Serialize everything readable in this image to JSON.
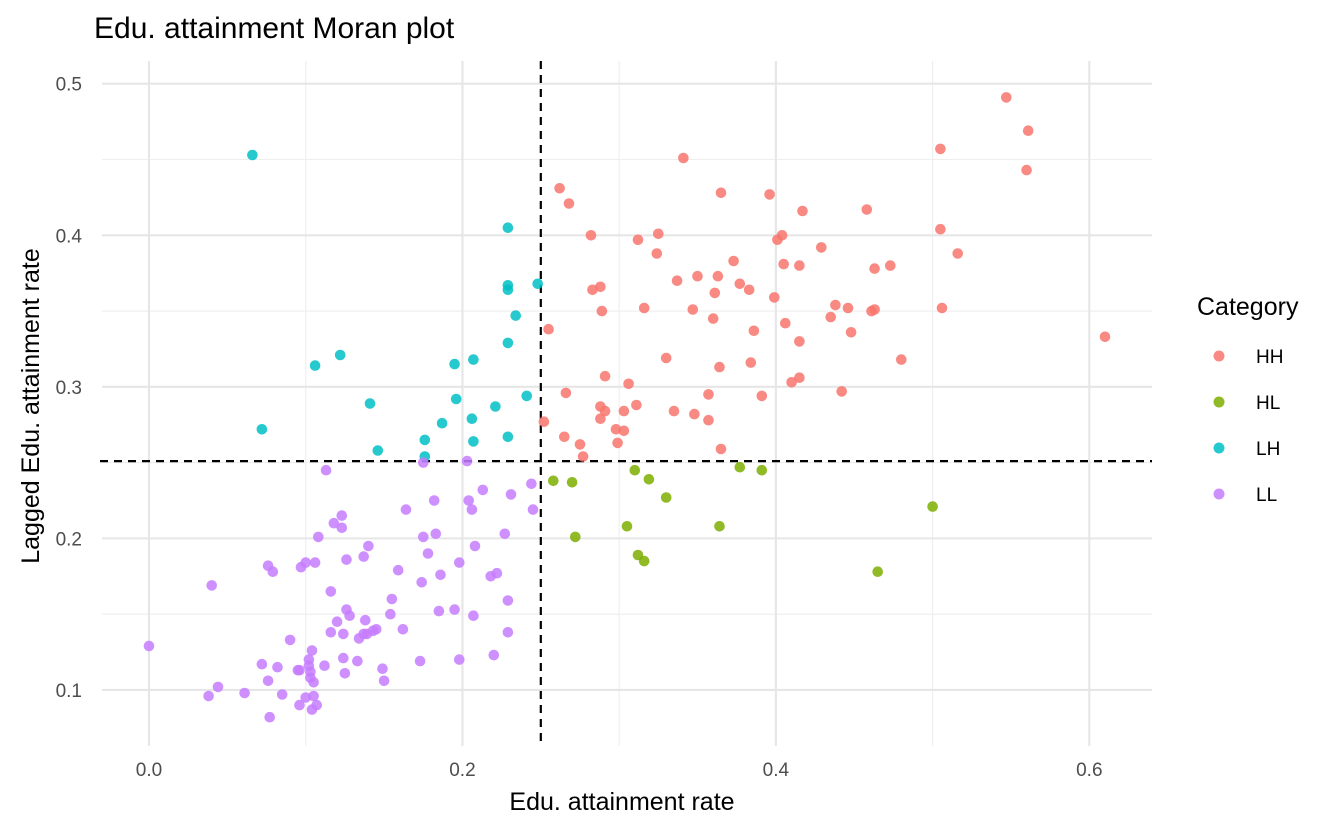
{
  "chart_data": {
    "type": "scatter",
    "title": "Edu. attainment Moran plot",
    "xlabel": "Edu. attainment rate",
    "ylabel": "Lagged Edu. attainment rate",
    "xlim": [
      -0.03,
      0.64
    ],
    "ylim": [
      0.063,
      0.515
    ],
    "x_ticks": [
      0.0,
      0.2,
      0.4,
      0.6
    ],
    "x_tick_labels": [
      "0.0",
      "0.2",
      "0.4",
      "0.6"
    ],
    "y_ticks": [
      0.1,
      0.2,
      0.3,
      0.4,
      0.5
    ],
    "y_tick_labels": [
      "0.1",
      "0.2",
      "0.3",
      "0.4",
      "0.5"
    ],
    "grid": true,
    "legend_position": "right",
    "legend_title": "Category",
    "reference_lines": {
      "x": 0.25,
      "y": 0.251
    },
    "series": [
      {
        "name": "HH",
        "color": "#F8766D",
        "points": [
          [
            0.547,
            0.491
          ],
          [
            0.561,
            0.469
          ],
          [
            0.56,
            0.443
          ],
          [
            0.505,
            0.457
          ],
          [
            0.505,
            0.404
          ],
          [
            0.506,
            0.352
          ],
          [
            0.516,
            0.388
          ],
          [
            0.61,
            0.333
          ],
          [
            0.458,
            0.417
          ],
          [
            0.463,
            0.378
          ],
          [
            0.473,
            0.38
          ],
          [
            0.461,
            0.35
          ],
          [
            0.463,
            0.351
          ],
          [
            0.48,
            0.318
          ],
          [
            0.448,
            0.336
          ],
          [
            0.446,
            0.352
          ],
          [
            0.438,
            0.354
          ],
          [
            0.435,
            0.346
          ],
          [
            0.442,
            0.297
          ],
          [
            0.429,
            0.392
          ],
          [
            0.417,
            0.416
          ],
          [
            0.415,
            0.38
          ],
          [
            0.415,
            0.33
          ],
          [
            0.415,
            0.306
          ],
          [
            0.41,
            0.303
          ],
          [
            0.406,
            0.342
          ],
          [
            0.405,
            0.381
          ],
          [
            0.404,
            0.4
          ],
          [
            0.401,
            0.397
          ],
          [
            0.399,
            0.359
          ],
          [
            0.396,
            0.427
          ],
          [
            0.391,
            0.294
          ],
          [
            0.386,
            0.337
          ],
          [
            0.384,
            0.316
          ],
          [
            0.383,
            0.364
          ],
          [
            0.377,
            0.368
          ],
          [
            0.373,
            0.383
          ],
          [
            0.365,
            0.428
          ],
          [
            0.364,
            0.313
          ],
          [
            0.363,
            0.373
          ],
          [
            0.361,
            0.362
          ],
          [
            0.36,
            0.345
          ],
          [
            0.357,
            0.295
          ],
          [
            0.357,
            0.278
          ],
          [
            0.365,
            0.259
          ],
          [
            0.35,
            0.373
          ],
          [
            0.347,
            0.351
          ],
          [
            0.348,
            0.282
          ],
          [
            0.341,
            0.451
          ],
          [
            0.337,
            0.37
          ],
          [
            0.335,
            0.284
          ],
          [
            0.33,
            0.319
          ],
          [
            0.325,
            0.401
          ],
          [
            0.324,
            0.388
          ],
          [
            0.316,
            0.352
          ],
          [
            0.312,
            0.397
          ],
          [
            0.311,
            0.288
          ],
          [
            0.306,
            0.302
          ],
          [
            0.303,
            0.284
          ],
          [
            0.303,
            0.271
          ],
          [
            0.299,
            0.263
          ],
          [
            0.298,
            0.272
          ],
          [
            0.291,
            0.307
          ],
          [
            0.291,
            0.284
          ],
          [
            0.288,
            0.366
          ],
          [
            0.289,
            0.35
          ],
          [
            0.288,
            0.287
          ],
          [
            0.288,
            0.279
          ],
          [
            0.283,
            0.364
          ],
          [
            0.282,
            0.4
          ],
          [
            0.275,
            0.262
          ],
          [
            0.277,
            0.254
          ],
          [
            0.268,
            0.421
          ],
          [
            0.262,
            0.431
          ],
          [
            0.266,
            0.296
          ],
          [
            0.265,
            0.267
          ],
          [
            0.255,
            0.338
          ],
          [
            0.252,
            0.277
          ]
        ]
      },
      {
        "name": "HL",
        "color": "#7CAE00",
        "points": [
          [
            0.5,
            0.221
          ],
          [
            0.465,
            0.178
          ],
          [
            0.391,
            0.245
          ],
          [
            0.377,
            0.247
          ],
          [
            0.364,
            0.208
          ],
          [
            0.33,
            0.227
          ],
          [
            0.319,
            0.239
          ],
          [
            0.31,
            0.245
          ],
          [
            0.305,
            0.208
          ],
          [
            0.312,
            0.189
          ],
          [
            0.316,
            0.185
          ],
          [
            0.27,
            0.237
          ],
          [
            0.272,
            0.201
          ],
          [
            0.258,
            0.238
          ]
        ]
      },
      {
        "name": "LH",
        "color": "#00BFC4",
        "points": [
          [
            0.066,
            0.453
          ],
          [
            0.072,
            0.272
          ],
          [
            0.106,
            0.314
          ],
          [
            0.122,
            0.321
          ],
          [
            0.141,
            0.289
          ],
          [
            0.146,
            0.258
          ],
          [
            0.176,
            0.265
          ],
          [
            0.176,
            0.254
          ],
          [
            0.187,
            0.276
          ],
          [
            0.195,
            0.315
          ],
          [
            0.196,
            0.292
          ],
          [
            0.207,
            0.318
          ],
          [
            0.206,
            0.279
          ],
          [
            0.207,
            0.264
          ],
          [
            0.221,
            0.287
          ],
          [
            0.229,
            0.405
          ],
          [
            0.229,
            0.367
          ],
          [
            0.229,
            0.364
          ],
          [
            0.229,
            0.329
          ],
          [
            0.229,
            0.267
          ],
          [
            0.234,
            0.347
          ],
          [
            0.241,
            0.294
          ],
          [
            0.248,
            0.368
          ]
        ]
      },
      {
        "name": "LL",
        "color": "#C77CFF",
        "points": [
          [
            0.0,
            0.129
          ],
          [
            0.04,
            0.169
          ],
          [
            0.038,
            0.096
          ],
          [
            0.044,
            0.102
          ],
          [
            0.061,
            0.098
          ],
          [
            0.072,
            0.117
          ],
          [
            0.076,
            0.106
          ],
          [
            0.076,
            0.182
          ],
          [
            0.079,
            0.178
          ],
          [
            0.077,
            0.082
          ],
          [
            0.082,
            0.115
          ],
          [
            0.085,
            0.097
          ],
          [
            0.09,
            0.133
          ],
          [
            0.095,
            0.113
          ],
          [
            0.096,
            0.09
          ],
          [
            0.096,
            0.113
          ],
          [
            0.097,
            0.181
          ],
          [
            0.1,
            0.184
          ],
          [
            0.1,
            0.095
          ],
          [
            0.102,
            0.12
          ],
          [
            0.102,
            0.116
          ],
          [
            0.103,
            0.112
          ],
          [
            0.103,
            0.108
          ],
          [
            0.104,
            0.126
          ],
          [
            0.104,
            0.087
          ],
          [
            0.105,
            0.096
          ],
          [
            0.105,
            0.105
          ],
          [
            0.106,
            0.184
          ],
          [
            0.107,
            0.09
          ],
          [
            0.108,
            0.201
          ],
          [
            0.112,
            0.116
          ],
          [
            0.113,
            0.245
          ],
          [
            0.116,
            0.165
          ],
          [
            0.116,
            0.138
          ],
          [
            0.118,
            0.21
          ],
          [
            0.12,
            0.145
          ],
          [
            0.123,
            0.215
          ],
          [
            0.123,
            0.207
          ],
          [
            0.124,
            0.121
          ],
          [
            0.124,
            0.137
          ],
          [
            0.125,
            0.111
          ],
          [
            0.126,
            0.153
          ],
          [
            0.126,
            0.186
          ],
          [
            0.128,
            0.149
          ],
          [
            0.133,
            0.119
          ],
          [
            0.134,
            0.134
          ],
          [
            0.137,
            0.188
          ],
          [
            0.137,
            0.137
          ],
          [
            0.138,
            0.146
          ],
          [
            0.139,
            0.137
          ],
          [
            0.14,
            0.195
          ],
          [
            0.143,
            0.139
          ],
          [
            0.145,
            0.14
          ],
          [
            0.149,
            0.114
          ],
          [
            0.15,
            0.106
          ],
          [
            0.154,
            0.15
          ],
          [
            0.155,
            0.16
          ],
          [
            0.159,
            0.179
          ],
          [
            0.162,
            0.14
          ],
          [
            0.164,
            0.219
          ],
          [
            0.173,
            0.119
          ],
          [
            0.174,
            0.171
          ],
          [
            0.175,
            0.25
          ],
          [
            0.175,
            0.201
          ],
          [
            0.178,
            0.19
          ],
          [
            0.182,
            0.225
          ],
          [
            0.183,
            0.203
          ],
          [
            0.185,
            0.152
          ],
          [
            0.186,
            0.176
          ],
          [
            0.195,
            0.153
          ],
          [
            0.198,
            0.12
          ],
          [
            0.198,
            0.184
          ],
          [
            0.203,
            0.251
          ],
          [
            0.204,
            0.225
          ],
          [
            0.206,
            0.219
          ],
          [
            0.207,
            0.149
          ],
          [
            0.208,
            0.195
          ],
          [
            0.213,
            0.232
          ],
          [
            0.218,
            0.175
          ],
          [
            0.22,
            0.123
          ],
          [
            0.222,
            0.177
          ],
          [
            0.227,
            0.203
          ],
          [
            0.229,
            0.138
          ],
          [
            0.229,
            0.159
          ],
          [
            0.231,
            0.229
          ],
          [
            0.244,
            0.236
          ],
          [
            0.245,
            0.219
          ]
        ]
      }
    ]
  }
}
